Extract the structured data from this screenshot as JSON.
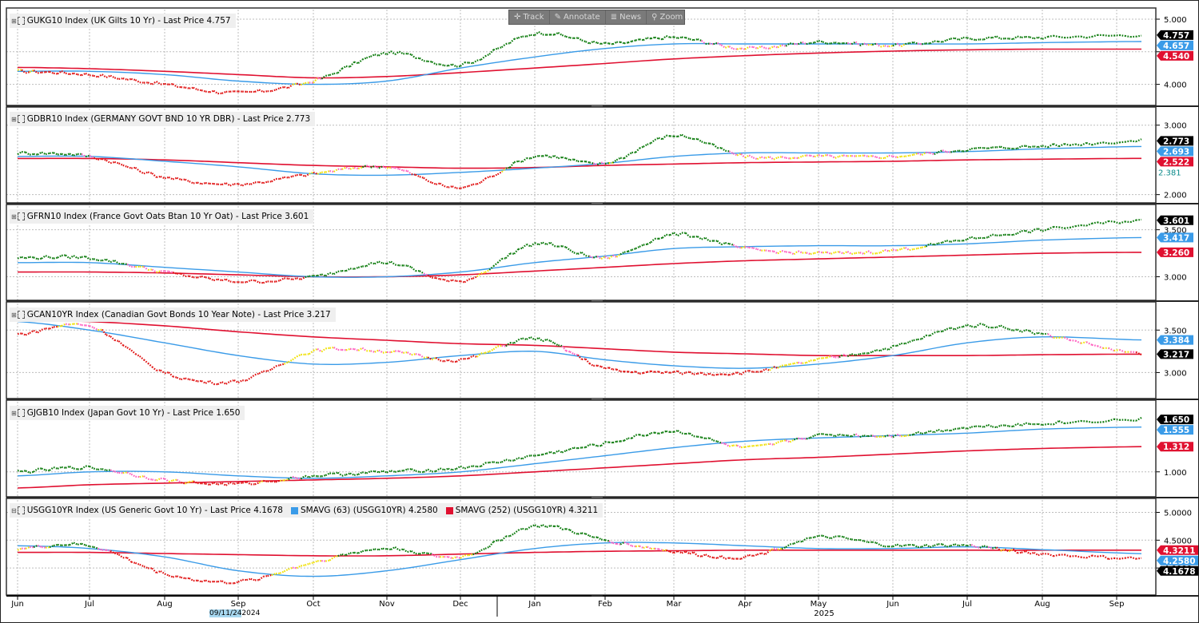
{
  "toolbar": {
    "buttons": [
      {
        "id": "track",
        "label": "Track",
        "icon": "crosshair-icon"
      },
      {
        "id": "annotate",
        "label": "Annotate",
        "icon": "pencil-icon"
      },
      {
        "id": "news",
        "label": "News",
        "icon": "news-icon"
      },
      {
        "id": "zoom",
        "label": "Zoom",
        "icon": "magnifier-icon"
      }
    ]
  },
  "x_axis": {
    "months": [
      "Jun",
      "Jul",
      "Aug",
      "Sep",
      "Oct",
      "Nov",
      "Dec",
      "Jan",
      "Feb",
      "Mar",
      "Apr",
      "May",
      "Jun",
      "Jul",
      "Aug",
      "Sep"
    ],
    "years": [
      "2024",
      "2025"
    ],
    "highlight_date": "09/11/24"
  },
  "colors": {
    "up": "#0a7a0a",
    "down": "#e01010",
    "neutral_up": "#f0e000",
    "neutral_down": "#ff60c0",
    "sma63": "#3a9be8",
    "sma252": "#e01030",
    "label_last": "#000000",
    "label_sma252": "#e01030",
    "label_sma63": "#3a9be8",
    "grid": "#bdbdbd",
    "panel_border": "#333333"
  },
  "chart_data": [
    {
      "type": "line",
      "title": "GUKG10 Index (UK Gilts 10 Yr) - Last Price 4.757",
      "x": [
        "2024-06",
        "2024-07",
        "2024-08",
        "2024-09",
        "2024-10",
        "2024-11",
        "2024-12",
        "2025-01",
        "2025-02",
        "2025-03",
        "2025-04",
        "2025-05",
        "2025-06",
        "2025-07",
        "2025-08",
        "2025-09"
      ],
      "ylim": [
        3.75,
        5.0
      ],
      "yticks": [
        4.0,
        4.5,
        5.0
      ],
      "ytick_labels": [
        "4.000",
        "",
        "5.000"
      ],
      "series": [
        {
          "values": [
            4.2,
            4.15,
            4.0,
            3.87,
            4.05,
            4.48,
            4.3,
            4.78,
            4.62,
            4.72,
            4.55,
            4.65,
            4.6,
            4.7,
            4.72,
            4.757
          ]
        },
        {
          "values": [
            4.2,
            4.2,
            4.15,
            4.05,
            4.0,
            4.05,
            4.25,
            4.42,
            4.55,
            4.62,
            4.62,
            4.62,
            4.62,
            4.62,
            4.64,
            4.657
          ]
        },
        {
          "values": [
            4.26,
            4.24,
            4.2,
            4.15,
            4.1,
            4.12,
            4.18,
            4.25,
            4.32,
            4.39,
            4.44,
            4.48,
            4.51,
            4.53,
            4.54,
            4.54
          ]
        }
      ],
      "last_labels": [
        {
          "text": "4.757",
          "value": 4.757,
          "kind": "last"
        },
        {
          "text": "4.657",
          "value": 4.657,
          "kind": "sma63"
        },
        {
          "text": "4.540",
          "value": 4.54,
          "kind": "sma252"
        }
      ]
    },
    {
      "type": "line",
      "title": "GDBR10 Index (GERMANY GOVT BND 10 YR DBR) - Last Price 2.773",
      "x": [
        "2024-06",
        "2024-07",
        "2024-08",
        "2024-09",
        "2024-10",
        "2024-11",
        "2024-12",
        "2025-01",
        "2025-02",
        "2025-03",
        "2025-04",
        "2025-05",
        "2025-06",
        "2025-07",
        "2025-08",
        "2025-09"
      ],
      "ylim": [
        1.95,
        3.1
      ],
      "yticks": [
        2.0,
        3.0
      ],
      "ytick_labels": [
        "2.000",
        "3.000"
      ],
      "series": [
        {
          "values": [
            2.6,
            2.55,
            2.25,
            2.15,
            2.3,
            2.4,
            2.1,
            2.55,
            2.45,
            2.85,
            2.55,
            2.55,
            2.55,
            2.65,
            2.7,
            2.773
          ]
        },
        {
          "values": [
            2.55,
            2.55,
            2.48,
            2.4,
            2.3,
            2.28,
            2.32,
            2.38,
            2.45,
            2.55,
            2.6,
            2.6,
            2.6,
            2.62,
            2.66,
            2.693
          ]
        },
        {
          "values": [
            2.52,
            2.52,
            2.5,
            2.46,
            2.42,
            2.4,
            2.38,
            2.39,
            2.42,
            2.44,
            2.46,
            2.47,
            2.48,
            2.5,
            2.51,
            2.522
          ]
        }
      ],
      "last_labels": [
        {
          "text": "2.773",
          "value": 2.773,
          "kind": "last"
        },
        {
          "text": "2.693",
          "value": 2.693,
          "kind": "sma63"
        },
        {
          "text": "2.522",
          "value": 2.522,
          "kind": "sma252"
        },
        {
          "text": "2.381",
          "value": 2.381,
          "kind": "plain"
        }
      ]
    },
    {
      "type": "line",
      "title": "GFRN10 Index (France Govt Oats Btan 10 Yr Oat) - Last Price 3.601",
      "x": [
        "2024-06",
        "2024-07",
        "2024-08",
        "2024-09",
        "2024-10",
        "2024-11",
        "2024-12",
        "2025-01",
        "2025-02",
        "2025-03",
        "2025-04",
        "2025-05",
        "2025-06",
        "2025-07",
        "2025-08",
        "2025-09"
      ],
      "ylim": [
        2.8,
        3.65
      ],
      "yticks": [
        3.0,
        3.5
      ],
      "ytick_labels": [
        "3.000",
        "3.500"
      ],
      "series": [
        {
          "values": [
            3.2,
            3.2,
            3.05,
            2.95,
            3.0,
            3.15,
            2.95,
            3.35,
            3.2,
            3.45,
            3.3,
            3.25,
            3.28,
            3.4,
            3.5,
            3.601
          ]
        },
        {
          "values": [
            3.15,
            3.15,
            3.1,
            3.05,
            3.0,
            3.0,
            3.05,
            3.15,
            3.22,
            3.3,
            3.32,
            3.33,
            3.33,
            3.35,
            3.39,
            3.417
          ]
        },
        {
          "values": [
            3.05,
            3.05,
            3.04,
            3.02,
            3.0,
            3.0,
            3.02,
            3.06,
            3.1,
            3.14,
            3.17,
            3.19,
            3.21,
            3.23,
            3.25,
            3.26
          ]
        }
      ],
      "last_labels": [
        {
          "text": "3.601",
          "value": 3.601,
          "kind": "last"
        },
        {
          "text": "3.417",
          "value": 3.417,
          "kind": "sma63"
        },
        {
          "text": "3.260",
          "value": 3.26,
          "kind": "sma252"
        }
      ]
    },
    {
      "type": "line",
      "title": "GCAN10YR Index (Canadian Govt Bonds 10 Year Note) - Last Price 3.217",
      "x": [
        "2024-06",
        "2024-07",
        "2024-08",
        "2024-09",
        "2024-10",
        "2024-11",
        "2024-12",
        "2025-01",
        "2025-02",
        "2025-03",
        "2025-04",
        "2025-05",
        "2025-06",
        "2025-07",
        "2025-08",
        "2025-09"
      ],
      "ylim": [
        2.75,
        3.7
      ],
      "yticks": [
        3.0,
        3.5
      ],
      "ytick_labels": [
        "3.000",
        "3.500"
      ],
      "series": [
        {
          "values": [
            3.45,
            3.55,
            3.0,
            2.9,
            3.25,
            3.25,
            3.15,
            3.4,
            3.05,
            3.0,
            3.0,
            3.15,
            3.3,
            3.55,
            3.45,
            3.217
          ]
        },
        {
          "values": [
            3.6,
            3.5,
            3.35,
            3.2,
            3.1,
            3.12,
            3.2,
            3.25,
            3.15,
            3.08,
            3.05,
            3.1,
            3.2,
            3.35,
            3.42,
            3.384
          ]
        },
        {
          "values": [
            3.62,
            3.6,
            3.55,
            3.48,
            3.42,
            3.38,
            3.34,
            3.32,
            3.28,
            3.24,
            3.22,
            3.2,
            3.2,
            3.2,
            3.21,
            3.217
          ]
        }
      ],
      "last_labels": [
        {
          "text": "3.384",
          "value": 3.384,
          "kind": "sma63"
        },
        {
          "text": "3.217",
          "value": 3.217,
          "kind": "last"
        }
      ]
    },
    {
      "type": "line",
      "title": "GJGB10 Index (Japan Govt 10 Yr) - Last Price 1.650",
      "x": [
        "2024-06",
        "2024-07",
        "2024-08",
        "2024-09",
        "2024-10",
        "2024-11",
        "2024-12",
        "2025-01",
        "2025-02",
        "2025-03",
        "2025-04",
        "2025-05",
        "2025-06",
        "2025-07",
        "2025-08",
        "2025-09"
      ],
      "ylim": [
        0.75,
        1.75
      ],
      "yticks": [
        1.0
      ],
      "ytick_labels": [
        "1.000"
      ],
      "series": [
        {
          "values": [
            1.0,
            1.05,
            0.9,
            0.85,
            0.95,
            1.0,
            1.05,
            1.2,
            1.35,
            1.5,
            1.3,
            1.45,
            1.45,
            1.55,
            1.6,
            1.65
          ]
        },
        {
          "values": [
            0.95,
            1.0,
            1.0,
            0.95,
            0.92,
            0.95,
            1.0,
            1.1,
            1.2,
            1.3,
            1.38,
            1.42,
            1.45,
            1.48,
            1.53,
            1.555
          ]
        },
        {
          "values": [
            0.8,
            0.84,
            0.86,
            0.88,
            0.9,
            0.92,
            0.95,
            1.0,
            1.05,
            1.1,
            1.15,
            1.18,
            1.22,
            1.26,
            1.29,
            1.312
          ]
        }
      ],
      "last_labels": [
        {
          "text": "1.650",
          "value": 1.65,
          "kind": "last"
        },
        {
          "text": "1.555",
          "value": 1.555,
          "kind": "sma63"
        },
        {
          "text": "1.312",
          "value": 1.312,
          "kind": "sma252"
        }
      ]
    },
    {
      "type": "line",
      "title": "USGG10YR Index (US Generic Govt 10 Yr) - Last Price 4.1678",
      "legend": [
        {
          "name": "SMAVG (63) (USGG10YR) 4.2580",
          "kind": "sma63"
        },
        {
          "name": "SMAVG (252) (USGG10YR) 4.3211",
          "kind": "sma252"
        }
      ],
      "x": [
        "2024-06",
        "2024-07",
        "2024-08",
        "2024-09",
        "2024-10",
        "2024-11",
        "2024-12",
        "2025-01",
        "2025-02",
        "2025-03",
        "2025-04",
        "2025-05",
        "2025-06",
        "2025-07",
        "2025-08",
        "2025-09"
      ],
      "ylim": [
        3.6,
        5.05
      ],
      "yticks": [
        4.0,
        4.5,
        5.0
      ],
      "ytick_labels": [
        "4.0000",
        "4.5000",
        "5.0000"
      ],
      "series": [
        {
          "values": [
            4.35,
            4.4,
            3.9,
            3.75,
            4.1,
            4.35,
            4.2,
            4.75,
            4.5,
            4.3,
            4.2,
            4.55,
            4.4,
            4.4,
            4.25,
            4.1678
          ]
        },
        {
          "values": [
            4.4,
            4.35,
            4.2,
            3.95,
            3.85,
            3.95,
            4.15,
            4.35,
            4.45,
            4.45,
            4.4,
            4.35,
            4.35,
            4.38,
            4.33,
            4.258
          ]
        },
        {
          "values": [
            4.28,
            4.28,
            4.26,
            4.24,
            4.22,
            4.22,
            4.25,
            4.28,
            4.3,
            4.31,
            4.32,
            4.32,
            4.32,
            4.32,
            4.32,
            4.3211
          ]
        }
      ],
      "last_labels": [
        {
          "text": "4.3211",
          "value": 4.3211,
          "kind": "sma252"
        },
        {
          "text": "4.2580",
          "value": 4.258,
          "kind": "sma63"
        },
        {
          "text": "4.1678",
          "value": 4.1678,
          "kind": "last"
        }
      ]
    }
  ]
}
